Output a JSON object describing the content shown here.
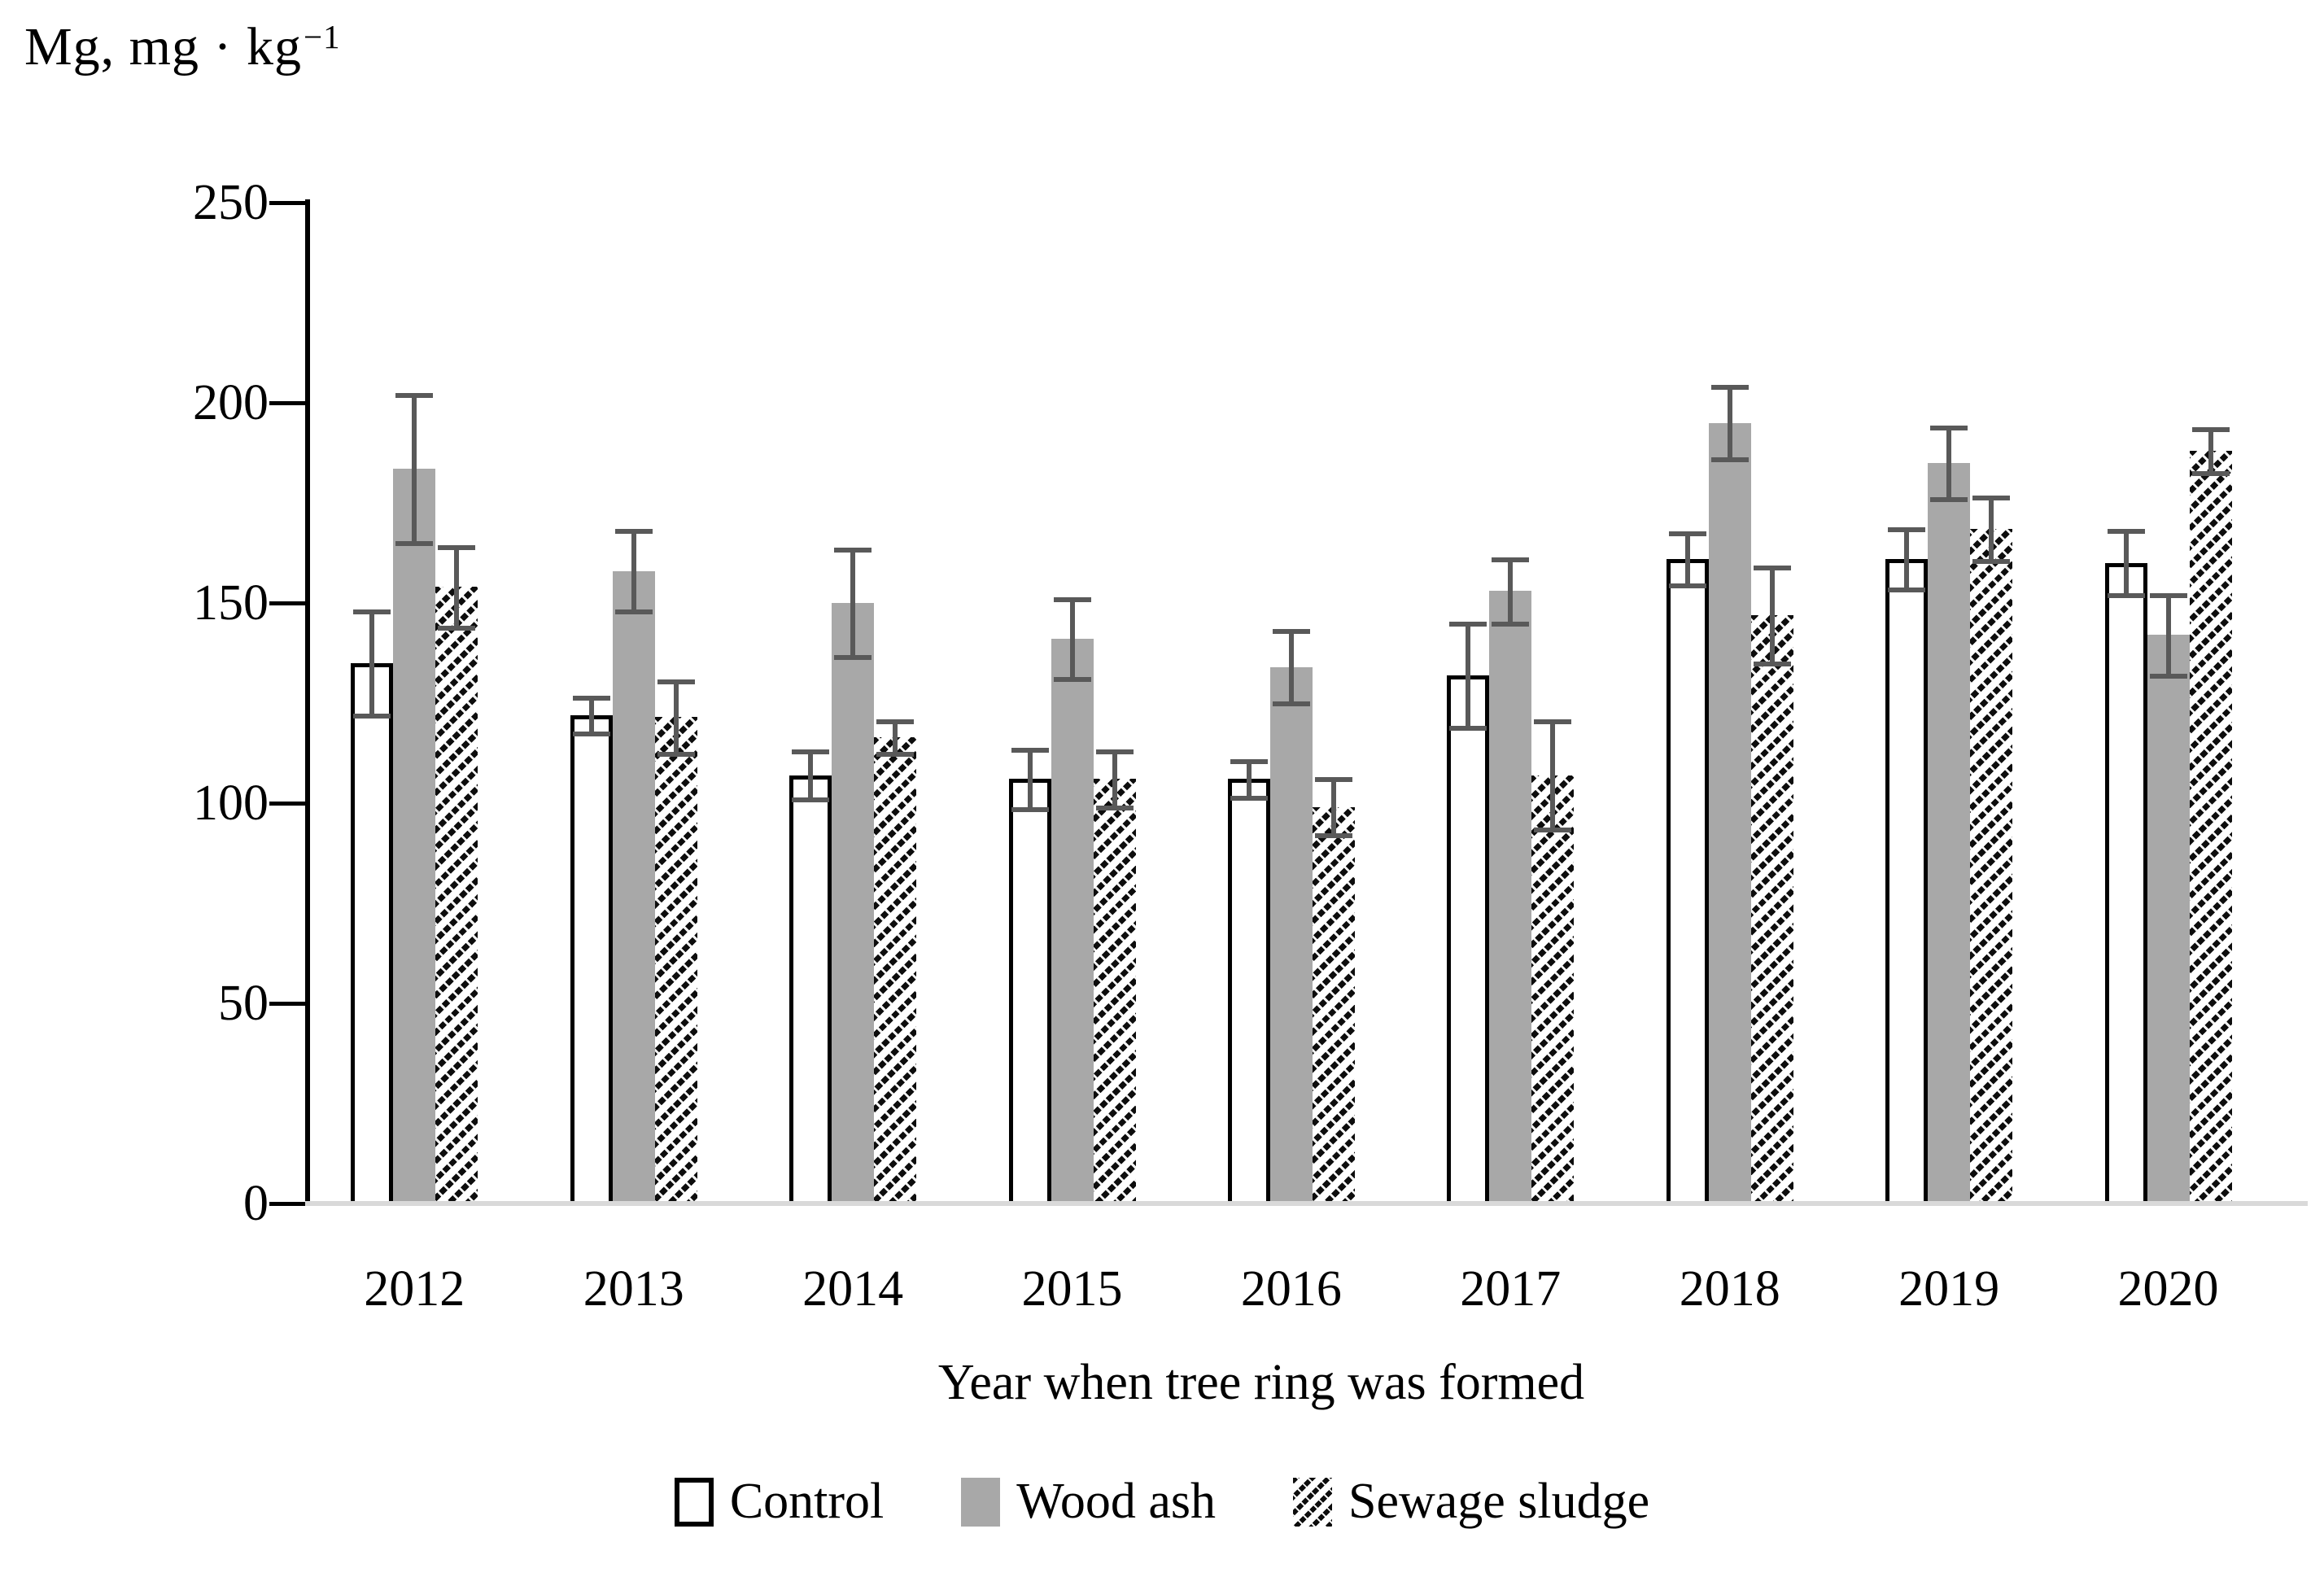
{
  "title": {
    "base": "Mg, mg · kg",
    "sup": "−1"
  },
  "legend": [
    {
      "label": "Control",
      "style": "control"
    },
    {
      "label": "Wood ash",
      "style": "solid"
    },
    {
      "label": "Sewage sludge",
      "style": "hatch"
    }
  ],
  "colors": {
    "bar_gray": "#a8a8a8",
    "error_bar": "#595959",
    "axis_black": "#000000",
    "baseline_gray": "#d9d9d9",
    "background": "#ffffff"
  },
  "chart_data": {
    "type": "bar",
    "title": "Mg, mg · kg⁻¹",
    "xlabel": "Year when tree ring was formed",
    "ylabel": "Mg, mg · kg⁻¹",
    "categories": [
      "2012",
      "2013",
      "2014",
      "2015",
      "2016",
      "2017",
      "2018",
      "2019",
      "2020"
    ],
    "series": [
      {
        "name": "Control",
        "style": "outline",
        "values": [
          135,
          122,
          107,
          106,
          106,
          132,
          161,
          161,
          160
        ],
        "errors": [
          13,
          4.5,
          6,
          7.5,
          4.5,
          13,
          6.5,
          7.5,
          8
        ]
      },
      {
        "name": "Wood ash",
        "style": "solid",
        "values": [
          183.5,
          158,
          150,
          141,
          134,
          153,
          195,
          185,
          142
        ],
        "errors": [
          18.5,
          10,
          13.5,
          10,
          9,
          8,
          9,
          9,
          10
        ]
      },
      {
        "name": "Sewage sludge",
        "style": "hatch",
        "values": [
          154,
          121.5,
          116.5,
          106,
          99,
          107,
          147,
          168.5,
          188
        ],
        "errors": [
          10,
          9,
          4,
          7,
          7,
          13.5,
          12,
          8,
          5.5
        ]
      }
    ],
    "ylim": [
      0,
      250
    ],
    "yticks": [
      0,
      50,
      100,
      150,
      200,
      250
    ],
    "grid": false,
    "error_bars": true,
    "legend_position": "bottom"
  }
}
